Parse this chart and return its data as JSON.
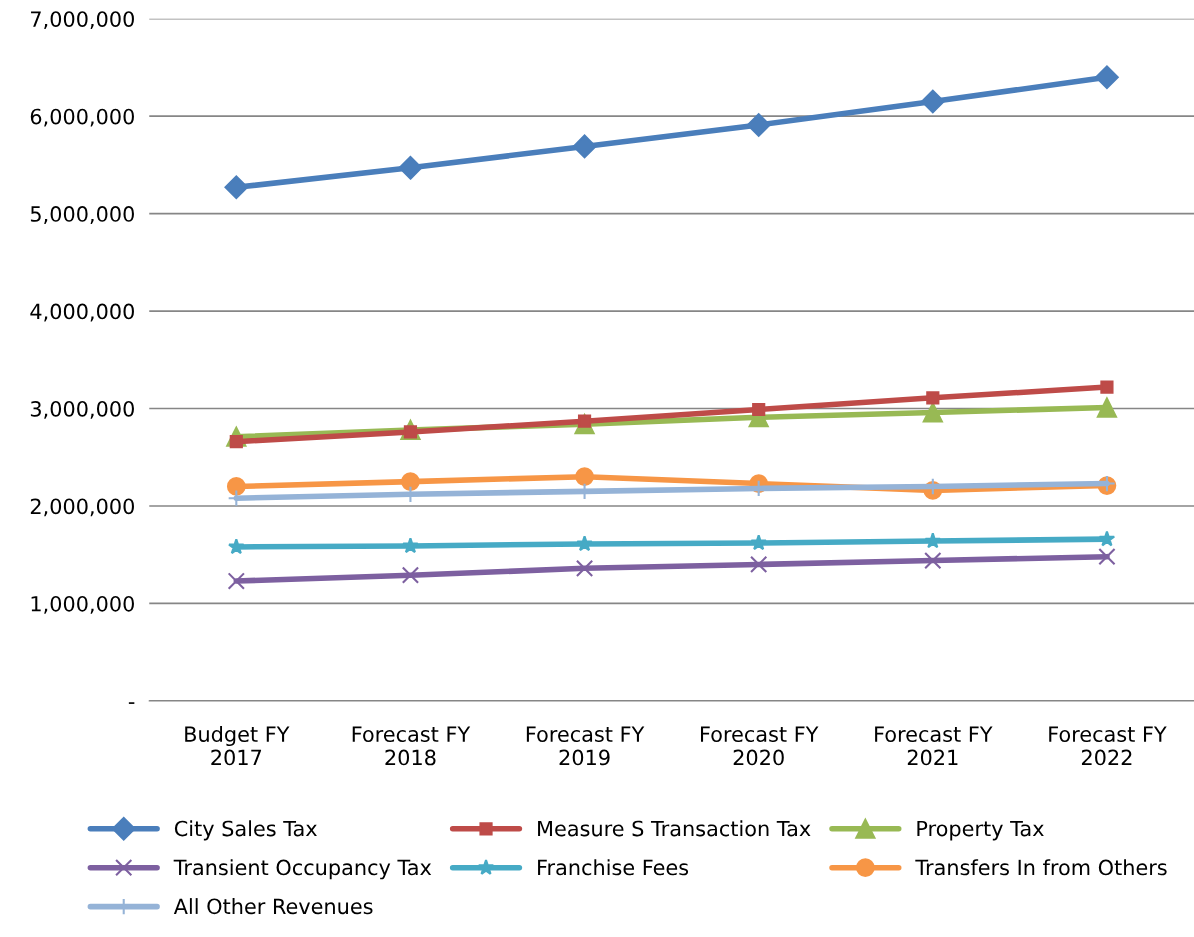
{
  "chart_data": {
    "type": "line",
    "categories": [
      "Budget FY\n2017",
      "Forecast FY\n2018",
      "Forecast FY\n2019",
      "Forecast FY\n2020",
      "Forecast FY\n2021",
      "Forecast FY\n2022"
    ],
    "series": [
      {
        "name": "City Sales Tax",
        "color": "#4a7ebb",
        "marker": "diamond",
        "values": [
          5270000,
          5470000,
          5690000,
          5910000,
          6150000,
          6400000
        ]
      },
      {
        "name": "Measure S Transaction Tax",
        "color": "#be4b48",
        "marker": "square",
        "values": [
          2660000,
          2760000,
          2870000,
          2990000,
          3110000,
          3220000
        ]
      },
      {
        "name": "Property Tax",
        "color": "#98b954",
        "marker": "triangle",
        "values": [
          2710000,
          2780000,
          2840000,
          2910000,
          2960000,
          3010000
        ]
      },
      {
        "name": "Transient Occupancy Tax",
        "color": "#7d60a0",
        "marker": "cross",
        "values": [
          1230000,
          1290000,
          1360000,
          1400000,
          1440000,
          1480000
        ]
      },
      {
        "name": "Franchise Fees",
        "color": "#46aac5",
        "marker": "star",
        "values": [
          1580000,
          1590000,
          1610000,
          1620000,
          1640000,
          1660000
        ]
      },
      {
        "name": "Transfers In from Others",
        "color": "#f79646",
        "marker": "circle",
        "values": [
          2200000,
          2250000,
          2300000,
          2230000,
          2160000,
          2210000
        ]
      },
      {
        "name": "All Other Revenues",
        "color": "#95b3d7",
        "marker": "plus",
        "values": [
          2080000,
          2120000,
          2150000,
          2180000,
          2200000,
          2230000
        ]
      }
    ],
    "ylim": [
      0,
      7000000
    ],
    "yticks": [
      {
        "value": 0,
        "label": "-"
      },
      {
        "value": 1000000,
        "label": "1,000,000"
      },
      {
        "value": 2000000,
        "label": "2,000,000"
      },
      {
        "value": 3000000,
        "label": "3,000,000"
      },
      {
        "value": 4000000,
        "label": "4,000,000"
      },
      {
        "value": 5000000,
        "label": "5,000,000"
      },
      {
        "value": 6000000,
        "label": "6,000,000"
      },
      {
        "value": 7000000,
        "label": "7,000,000"
      }
    ],
    "grid": "y",
    "legend": "bottom",
    "line_style": "solid"
  }
}
